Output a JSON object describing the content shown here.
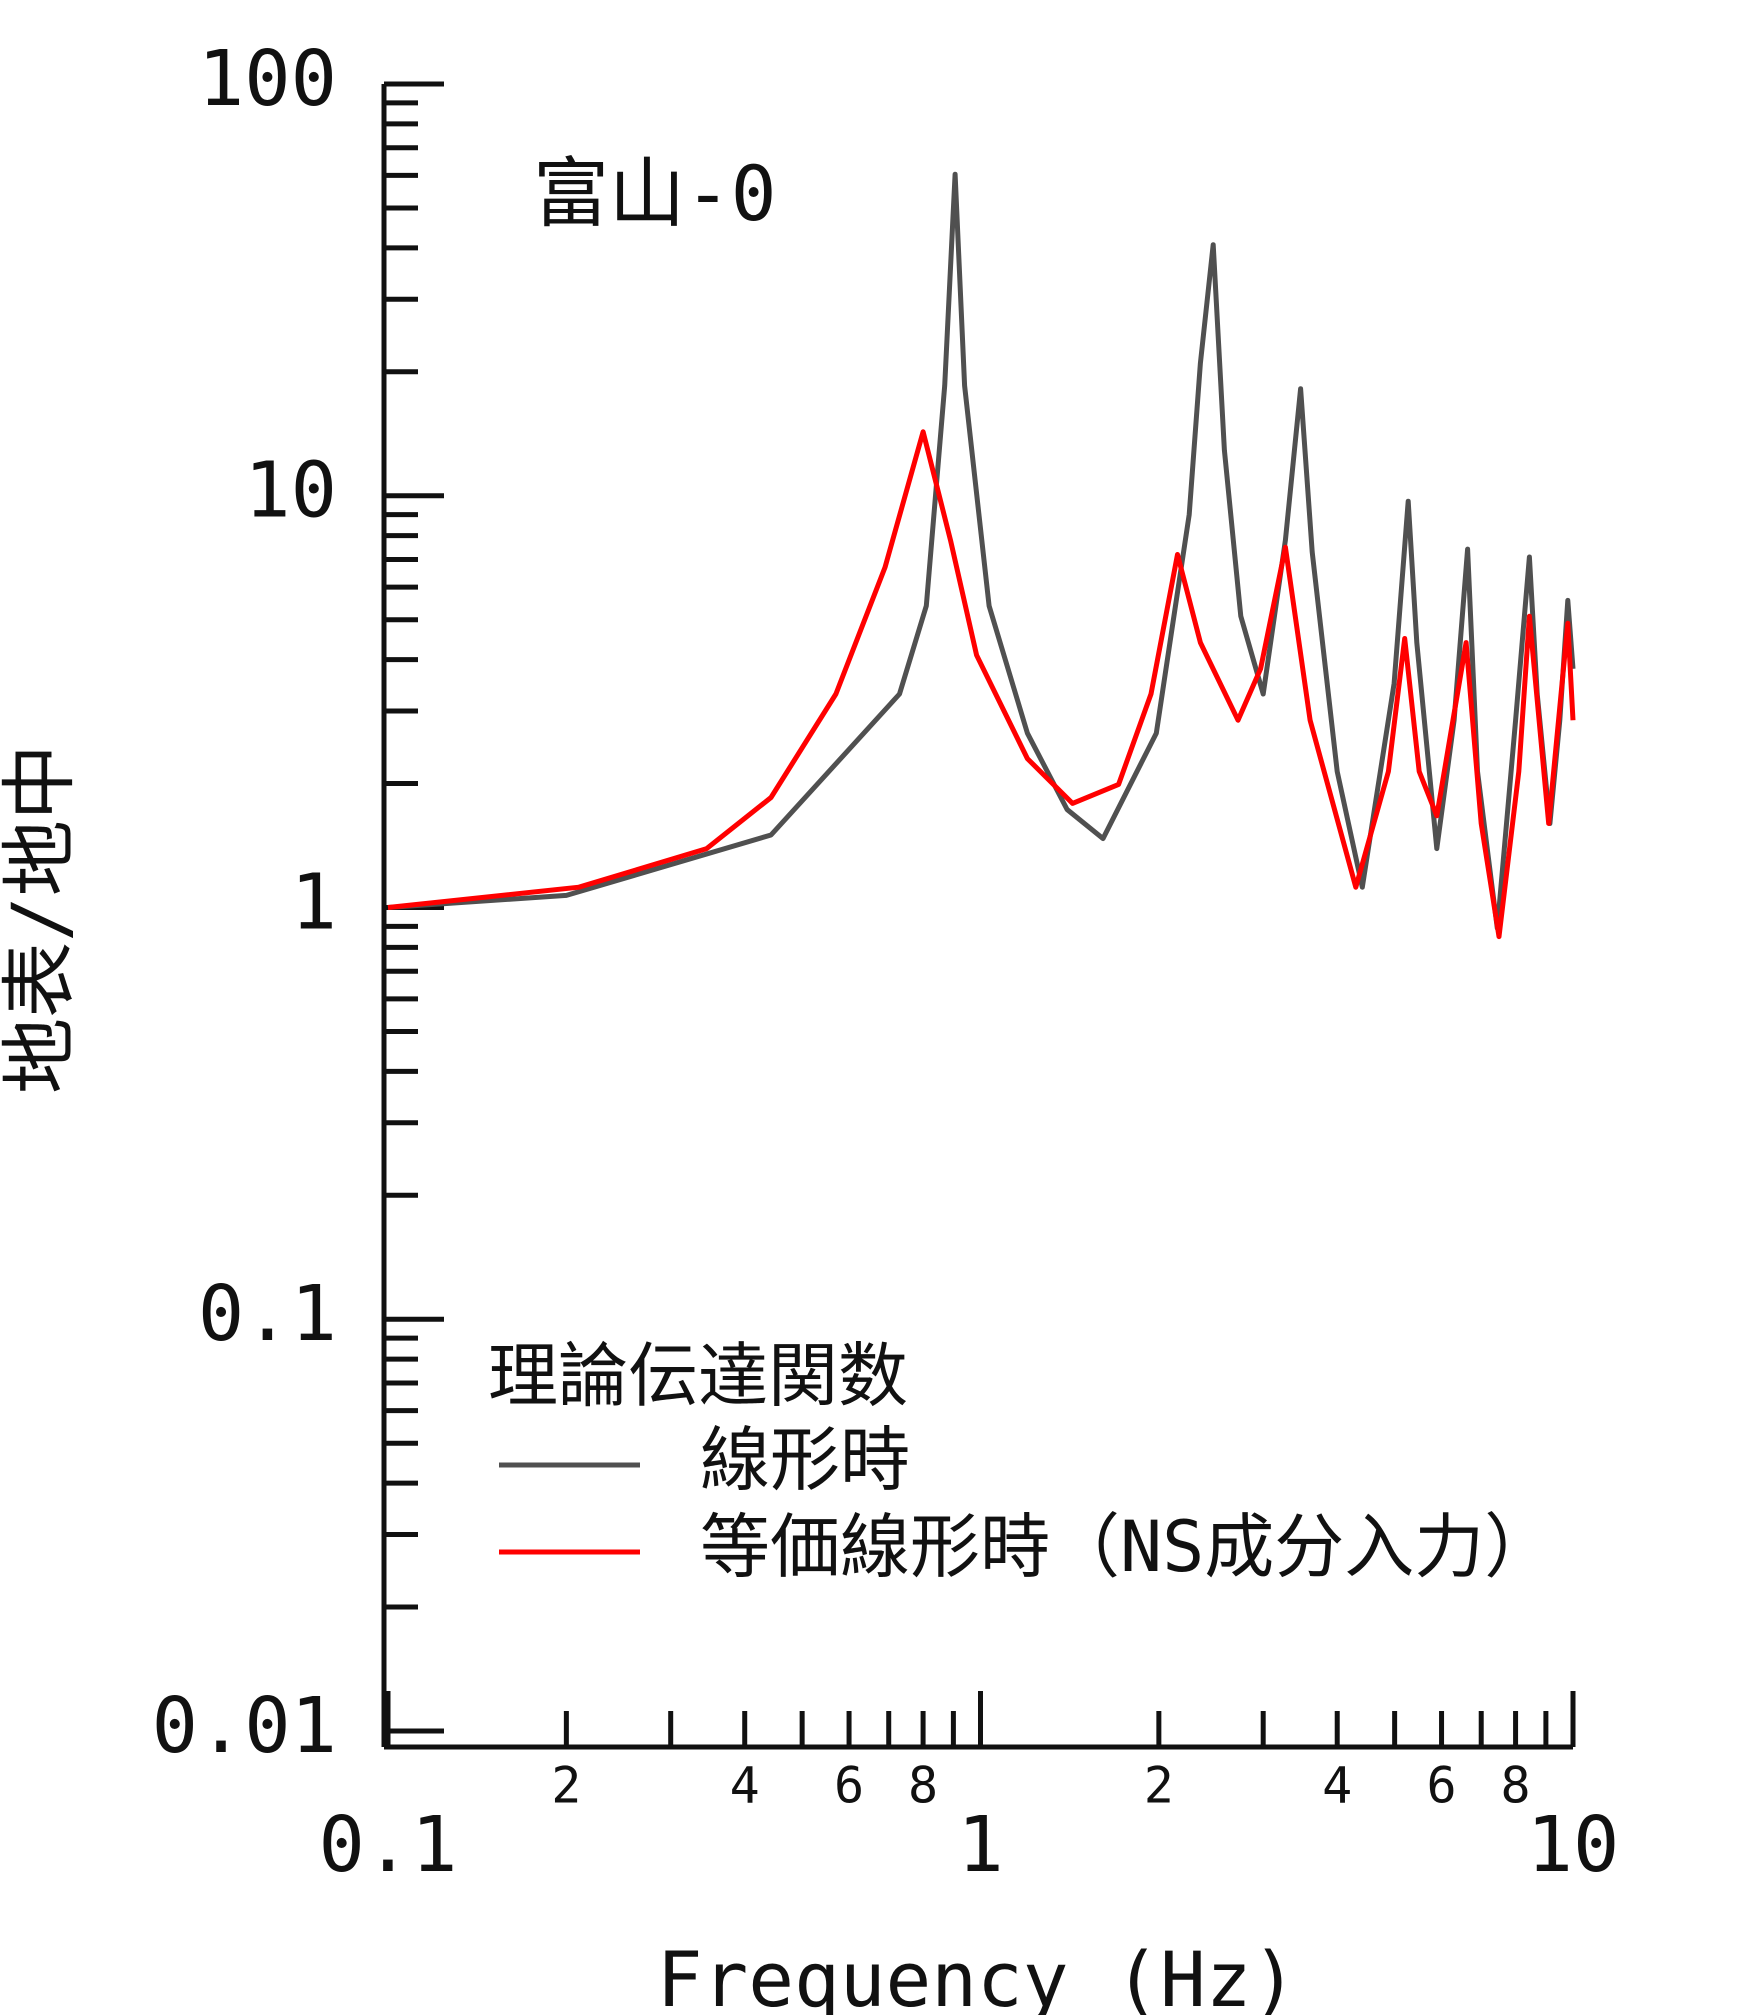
{
  "chart_data": {
    "type": "line",
    "xlog": true,
    "ylog": true,
    "annotation": "富山-0",
    "x_label": "Frequency (Hz)",
    "y_label": "地表/地中",
    "legend_title": "理論伝達関数",
    "xlim": [
      0.1,
      10
    ],
    "ylim": [
      0.01,
      100
    ],
    "xticks": [
      0.1,
      {
        "value": 0.2,
        "label": "2"
      },
      {
        "value": 0.4,
        "label": "4"
      },
      {
        "value": 0.6,
        "label": "6"
      },
      {
        "value": 0.8,
        "label": "8"
      },
      1,
      {
        "value": 2,
        "label": "2"
      },
      {
        "value": 4,
        "label": "4"
      },
      {
        "value": 6,
        "label": "6"
      },
      {
        "value": 8,
        "label": "8"
      },
      10
    ],
    "yticks": [
      0.01,
      0.1,
      1,
      10,
      100
    ],
    "series": [
      {
        "name": "線形時",
        "color": "#505050",
        "x": [
          0.1,
          0.2,
          0.443,
          0.73,
          0.81,
          0.87,
          0.906,
          0.94,
          1.034,
          1.2,
          1.4,
          1.61,
          1.98,
          2.25,
          2.35,
          2.47,
          2.58,
          2.75,
          3.0,
          3.27,
          3.47,
          3.63,
          4.0,
          4.41,
          4.99,
          5.27,
          5.45,
          5.89,
          6.3,
          6.64,
          6.9,
          7.45,
          8.0,
          8.44,
          8.7,
          9.14,
          9.5,
          9.8,
          10
        ],
        "values": [
          1.0,
          1.07,
          1.5,
          3.3,
          5.4,
          18.5,
          60.4,
          18.5,
          5.4,
          2.65,
          1.73,
          1.47,
          2.65,
          9,
          21,
          40.7,
          12.9,
          5.1,
          3.3,
          7.8,
          18.2,
          7.3,
          2.14,
          1.12,
          3.5,
          9.7,
          4.4,
          1.39,
          2.85,
          7.42,
          2.14,
          0.89,
          2.85,
          7.1,
          3.3,
          1.6,
          2.85,
          5.57,
          3.8
        ]
      },
      {
        "name": "等価線形時（NS成分入力）",
        "color": "#ff0000",
        "x": [
          0.1,
          0.21,
          0.345,
          0.443,
          0.57,
          0.69,
          0.8,
          0.89,
          0.985,
          1.2,
          1.43,
          1.71,
          1.94,
          2.15,
          2.35,
          2.72,
          2.97,
          3.27,
          3.6,
          4.3,
          4.88,
          5.2,
          5.5,
          5.89,
          6.6,
          7.0,
          7.5,
          8.1,
          8.44,
          9.1,
          9.8,
          10
        ],
        "values": [
          1.0,
          1.12,
          1.39,
          1.85,
          3.3,
          6.7,
          14.3,
          7.8,
          4.1,
          2.3,
          1.79,
          1.99,
          3.3,
          7.2,
          4.4,
          2.85,
          3.8,
          7.5,
          2.85,
          1.12,
          2.14,
          4.5,
          2.14,
          1.67,
          4.4,
          1.6,
          0.85,
          2.14,
          5.1,
          1.6,
          4.9,
          2.85
        ]
      }
    ]
  }
}
